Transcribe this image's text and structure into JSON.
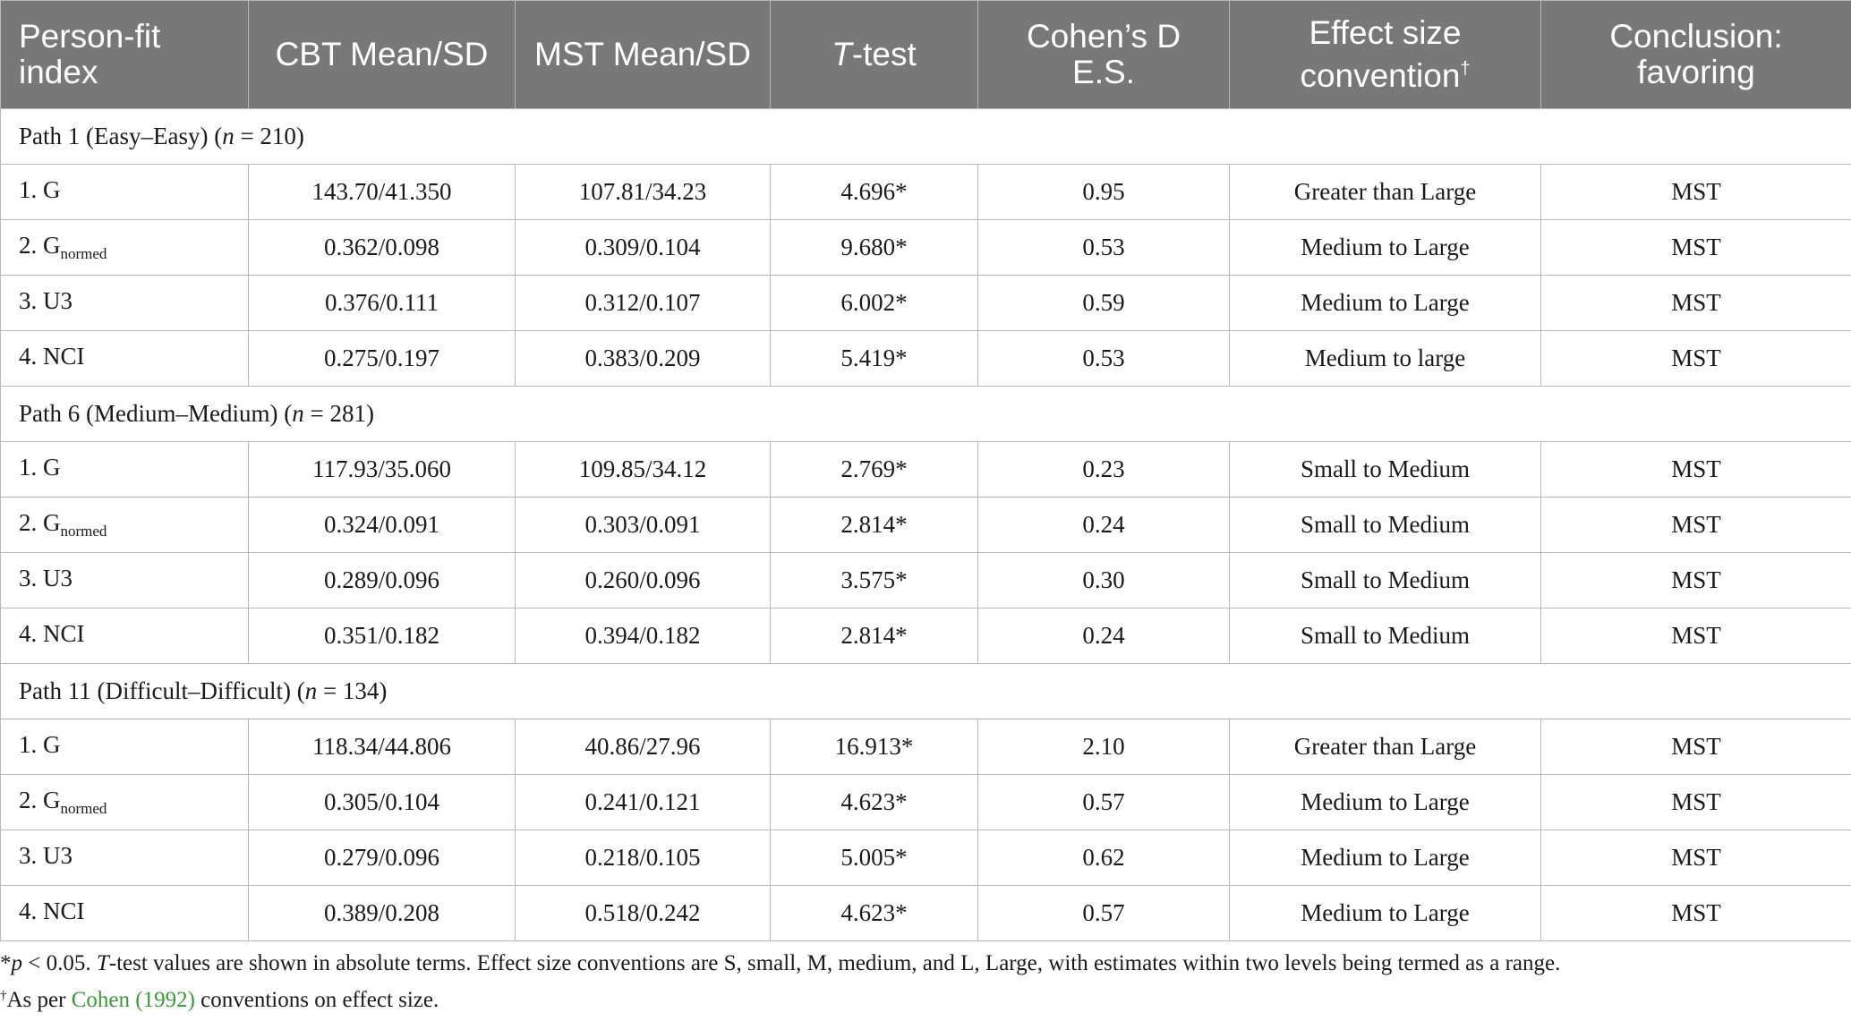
{
  "headers": {
    "index_line1": "Person-fit",
    "index_line2": "index",
    "cbt": "CBT Mean/SD",
    "mst": "MST Mean/SD",
    "ttest_italic": "T",
    "ttest_rest": "-test",
    "cohen_line1": "Cohen’s D",
    "cohen_line2": "E.S.",
    "effect_line1": "Effect size",
    "effect_line2": "convention",
    "effect_mark": "†",
    "conclusion_line1": "Conclusion:",
    "conclusion_line2": "favoring"
  },
  "groups": [
    {
      "label": "Path 1 (Easy–Easy) (",
      "n_symbol": "n",
      "n_value": " = 210)",
      "rows": [
        {
          "index_main": "1. G",
          "index_sub": "",
          "cbt": "143.70/41.350",
          "mst": "107.81/34.23",
          "t": "4.696*",
          "d": "0.95",
          "effect": "Greater than Large",
          "favor": "MST"
        },
        {
          "index_main": "2. G",
          "index_sub": "normed",
          "cbt": "0.362/0.098",
          "mst": "0.309/0.104",
          "t": "9.680*",
          "d": "0.53",
          "effect": "Medium to Large",
          "favor": "MST"
        },
        {
          "index_main": "3. U3",
          "index_sub": "",
          "cbt": "0.376/0.111",
          "mst": "0.312/0.107",
          "t": "6.002*",
          "d": "0.59",
          "effect": "Medium to Large",
          "favor": "MST"
        },
        {
          "index_main": "4. NCI",
          "index_sub": "",
          "cbt": "0.275/0.197",
          "mst": "0.383/0.209",
          "t": "5.419*",
          "d": "0.53",
          "effect": "Medium to large",
          "favor": "MST"
        }
      ]
    },
    {
      "label": "Path 6 (Medium–Medium) (",
      "n_symbol": "n",
      "n_value": " = 281)",
      "rows": [
        {
          "index_main": "1. G",
          "index_sub": "",
          "cbt": "117.93/35.060",
          "mst": "109.85/34.12",
          "t": "2.769*",
          "d": "0.23",
          "effect": "Small to Medium",
          "favor": "MST"
        },
        {
          "index_main": "2. G",
          "index_sub": "normed",
          "cbt": "0.324/0.091",
          "mst": "0.303/0.091",
          "t": "2.814*",
          "d": "0.24",
          "effect": "Small to Medium",
          "favor": "MST"
        },
        {
          "index_main": "3. U3",
          "index_sub": "",
          "cbt": "0.289/0.096",
          "mst": "0.260/0.096",
          "t": "3.575*",
          "d": "0.30",
          "effect": "Small to Medium",
          "favor": "MST"
        },
        {
          "index_main": "4. NCI",
          "index_sub": "",
          "cbt": "0.351/0.182",
          "mst": "0.394/0.182",
          "t": "2.814*",
          "d": "0.24",
          "effect": "Small to Medium",
          "favor": "MST"
        }
      ]
    },
    {
      "label": "Path 11 (Difficult–Difficult) (",
      "n_symbol": "n",
      "n_value": " = 134)",
      "rows": [
        {
          "index_main": "1. G",
          "index_sub": "",
          "cbt": "118.34/44.806",
          "mst": "40.86/27.96",
          "t": "16.913*",
          "d": "2.10",
          "effect": "Greater than Large",
          "favor": "MST"
        },
        {
          "index_main": "2. G",
          "index_sub": "normed",
          "cbt": "0.305/0.104",
          "mst": "0.241/0.121",
          "t": "4.623*",
          "d": "0.57",
          "effect": "Medium to Large",
          "favor": "MST"
        },
        {
          "index_main": "3. U3",
          "index_sub": "",
          "cbt": "0.279/0.096",
          "mst": "0.218/0.105",
          "t": "5.005*",
          "d": "0.62",
          "effect": "Medium to Large",
          "favor": "MST"
        },
        {
          "index_main": "4. NCI",
          "index_sub": "",
          "cbt": "0.389/0.208",
          "mst": "0.518/0.242",
          "t": "4.623*",
          "d": "0.57",
          "effect": "Medium to Large",
          "favor": "MST"
        }
      ]
    }
  ],
  "notes": {
    "line1_star": "*",
    "line1_p": "p",
    "line1_after_p": " < 0.05. ",
    "line1_T": "T",
    "line1_rest": "-test values are shown in absolute terms. Effect size conventions are S, small, M, medium, and L, Large, with estimates within two levels being termed as a range.",
    "line2_mark": "†",
    "line2_before": "As per ",
    "line2_link": "Cohen (1992)",
    "line2_after": " conventions on effect size."
  },
  "colors": {
    "header_bg": "#777877",
    "header_text": "#ffffff",
    "grid": "#b8b8b8",
    "link": "#3a9a3a"
  }
}
